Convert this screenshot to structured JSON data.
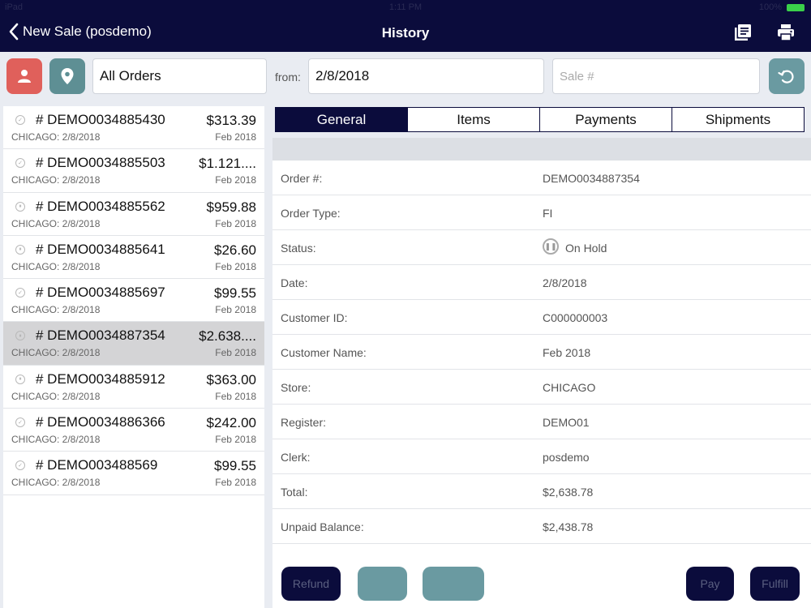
{
  "status_bar": {
    "carrier": "iPad",
    "time": "1:11 PM",
    "battery": "100%"
  },
  "nav": {
    "back_label": "New Sale (posdemo)",
    "title": "History"
  },
  "filters": {
    "scope": "All Orders",
    "from_label": "from:",
    "from_date": "2/8/2018",
    "sale_placeholder": "Sale #"
  },
  "colors": {
    "nav_bg": "#0b0c3c",
    "customer_tile": "#e0605b",
    "location_tile": "#5e8f94",
    "refresh_tile": "#6a9aa1",
    "selected_row": "#d4d4d6"
  },
  "orders": [
    {
      "number": "# DEMO0034885430",
      "amount": "$313.39",
      "location": "CHICAGO: 2/8/2018",
      "date": "Feb 2018",
      "status": "check"
    },
    {
      "number": "# DEMO0034885503",
      "amount": "$1.121....",
      "location": "CHICAGO: 2/8/2018",
      "date": "Feb 2018",
      "status": "check"
    },
    {
      "number": "# DEMO0034885562",
      "amount": "$959.88",
      "location": "CHICAGO: 2/8/2018",
      "date": "Feb 2018",
      "status": "hold"
    },
    {
      "number": "# DEMO0034885641",
      "amount": "$26.60",
      "location": "CHICAGO: 2/8/2018",
      "date": "Feb 2018",
      "status": "hold"
    },
    {
      "number": "# DEMO0034885697",
      "amount": "$99.55",
      "location": "CHICAGO: 2/8/2018",
      "date": "Feb 2018",
      "status": "check"
    },
    {
      "number": "# DEMO0034887354",
      "amount": "$2.638....",
      "location": "CHICAGO: 2/8/2018",
      "date": "Feb 2018",
      "status": "hold",
      "selected": true
    },
    {
      "number": "# DEMO0034885912",
      "amount": "$363.00",
      "location": "CHICAGO: 2/8/2018",
      "date": "Feb 2018",
      "status": "hold"
    },
    {
      "number": "# DEMO0034886366",
      "amount": "$242.00",
      "location": "CHICAGO: 2/8/2018",
      "date": "Feb 2018",
      "status": "check"
    },
    {
      "number": "# DEMO003488569",
      "amount": "$99.55",
      "location": "CHICAGO: 2/8/2018",
      "date": "Feb 2018",
      "status": "check"
    }
  ],
  "tabs": [
    {
      "label": "General",
      "active": true
    },
    {
      "label": "Items"
    },
    {
      "label": "Payments"
    },
    {
      "label": "Shipments"
    }
  ],
  "details": [
    {
      "label": "Order #:",
      "value": "DEMO0034887354"
    },
    {
      "label": "Order Type:",
      "value": "FI"
    },
    {
      "label": "Status:",
      "value": "On Hold",
      "icon": "pause-circle-icon"
    },
    {
      "label": "Date:",
      "value": "2/8/2018"
    },
    {
      "label": "Customer ID:",
      "value": "C000000003"
    },
    {
      "label": "Customer Name:",
      "value": "Feb 2018"
    },
    {
      "label": "Store:",
      "value": "CHICAGO"
    },
    {
      "label": "Register:",
      "value": "DEMO01"
    },
    {
      "label": "Clerk:",
      "value": "posdemo"
    },
    {
      "label": "Total:",
      "value": "$2,638.78"
    },
    {
      "label": "Unpaid Balance:",
      "value": "$2,438.78"
    }
  ],
  "actions": {
    "refund": "Refund",
    "pay": "Pay",
    "fulfill": "Fulfill"
  }
}
